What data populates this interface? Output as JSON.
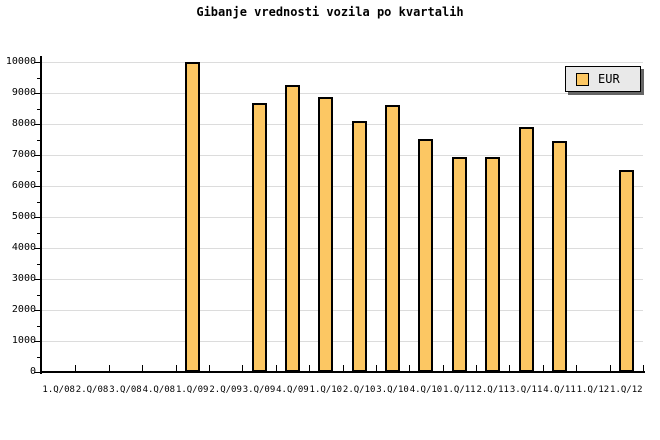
{
  "title": "Gibanje vrednosti vozila po kvartalih",
  "legend": {
    "label": "EUR"
  },
  "colors": {
    "background": "#FFFFFF",
    "bar_fill": "#FCC763",
    "bar_border": "#000000",
    "gridline": "#DCDCDC",
    "axis": "#000000",
    "legend_bg": "#E9E9E9",
    "legend_shadow": "#666666"
  },
  "chart_data": {
    "type": "bar",
    "title": "Gibanje vrednosti vozila po kvartalih",
    "xlabel": "",
    "ylabel": "",
    "categories": [
      "1.Q/08",
      "2.Q/08",
      "3.Q/08",
      "4.Q/08",
      "1.Q/09",
      "2.Q/09",
      "3.Q/09",
      "4.Q/09",
      "1.Q/10",
      "2.Q/10",
      "3.Q/10",
      "4.Q/10",
      "1.Q/11",
      "2.Q/11",
      "3.Q/11",
      "4.Q/11",
      "1.Q/12",
      "1.Q/12"
    ],
    "series": [
      {
        "name": "EUR",
        "values": [
          null,
          null,
          null,
          null,
          9990,
          null,
          8680,
          9260,
          8870,
          8090,
          8610,
          7520,
          6940,
          6940,
          7890,
          7460,
          null,
          6520
        ]
      }
    ],
    "ylim": [
      0,
      10000
    ],
    "ytick_step": 1000,
    "yminor_step": 500,
    "ytick_labels": [
      "0",
      "1000",
      "2000",
      "3000",
      "4000",
      "5000",
      "6000",
      "7000",
      "8000",
      "9000",
      "10000"
    ],
    "grid": "horizontal",
    "legend_position": "top-right"
  }
}
